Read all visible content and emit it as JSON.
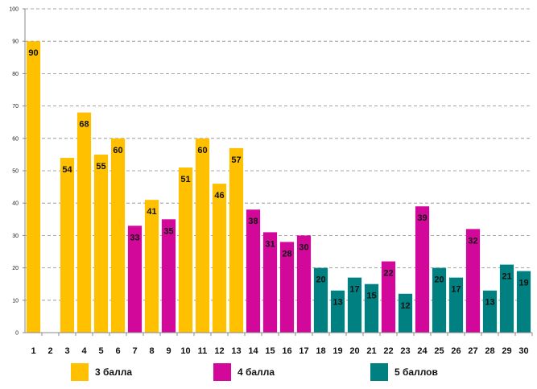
{
  "chart_data": {
    "type": "bar",
    "title": "",
    "xlabel": "",
    "ylabel": "",
    "ylim": [
      0,
      100
    ],
    "yticks": [
      0,
      10,
      20,
      30,
      40,
      50,
      60,
      70,
      80,
      90,
      100
    ],
    "grid": true,
    "categories": [
      "1",
      "2",
      "3",
      "4",
      "5",
      "6",
      "7",
      "8",
      "9",
      "10",
      "11",
      "12",
      "13",
      "14",
      "15",
      "16",
      "17",
      "18",
      "19",
      "20",
      "21",
      "22",
      "23",
      "24",
      "25",
      "26",
      "27",
      "28",
      "29",
      "30"
    ],
    "values": [
      90,
      null,
      54,
      68,
      55,
      60,
      33,
      41,
      35,
      51,
      60,
      46,
      57,
      38,
      31,
      28,
      30,
      20,
      13,
      17,
      15,
      22,
      12,
      39,
      20,
      17,
      32,
      13,
      21,
      19
    ],
    "groups": [
      "3",
      "3",
      "3",
      "3",
      "3",
      "3",
      "4",
      "3",
      "4",
      "3",
      "3",
      "3",
      "3",
      "4",
      "4",
      "4",
      "4",
      "5",
      "5",
      "5",
      "5",
      "4",
      "5",
      "4",
      "5",
      "5",
      "4",
      "5",
      "5",
      "5"
    ],
    "legend": [
      {
        "key": "3",
        "label": "3 балла",
        "color": "#FFC000"
      },
      {
        "key": "4",
        "label": "4 балла",
        "color": "#D2089A"
      },
      {
        "key": "5",
        "label": "5 баллов",
        "color": "#008080"
      }
    ],
    "legend_position": "bottom"
  }
}
